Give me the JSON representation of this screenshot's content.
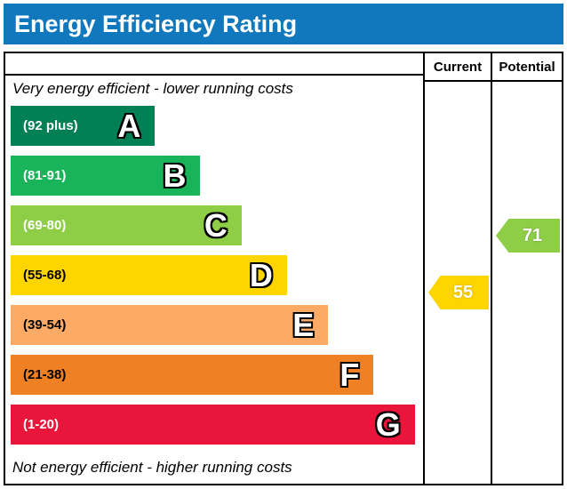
{
  "header": {
    "title": "Energy Efficiency Rating",
    "bg_color": "#1278bd"
  },
  "columns": {
    "current": "Current",
    "potential": "Potential"
  },
  "notes": {
    "top": "Very energy efficient - lower running costs",
    "bottom": "Not energy efficient - higher running costs"
  },
  "chart_data": {
    "type": "bar",
    "title": "Energy Efficiency Rating",
    "bands": [
      {
        "letter": "A",
        "range": "(92 plus)",
        "color": "#008054",
        "text_color": "#ffffff",
        "width_pct": 35
      },
      {
        "letter": "B",
        "range": "(81-91)",
        "color": "#19b459",
        "text_color": "#ffffff",
        "width_pct": 46
      },
      {
        "letter": "C",
        "range": "(69-80)",
        "color": "#8dce46",
        "text_color": "#ffffff",
        "width_pct": 56
      },
      {
        "letter": "D",
        "range": "(55-68)",
        "color": "#ffd500",
        "text_color": "#000000",
        "width_pct": 67
      },
      {
        "letter": "E",
        "range": "(39-54)",
        "color": "#fcaa65",
        "text_color": "#000000",
        "width_pct": 77
      },
      {
        "letter": "F",
        "range": "(21-38)",
        "color": "#ef8023",
        "text_color": "#000000",
        "width_pct": 88
      },
      {
        "letter": "G",
        "range": "(1-20)",
        "color": "#e9153b",
        "text_color": "#ffffff",
        "width_pct": 98
      }
    ],
    "current": {
      "value": "55",
      "band_letter": "D",
      "band_index": 3,
      "color": "#ffd500"
    },
    "potential": {
      "value": "71",
      "band_letter": "C",
      "band_index": 2,
      "color": "#8dce46"
    }
  }
}
